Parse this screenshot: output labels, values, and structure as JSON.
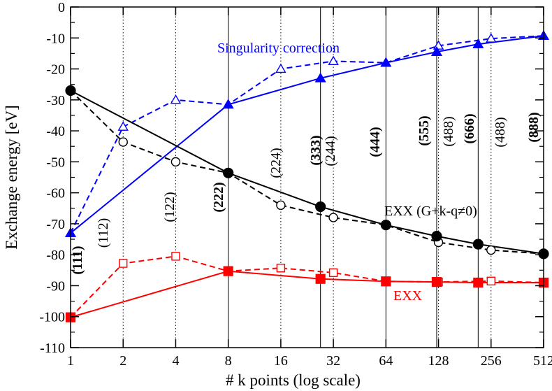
{
  "chart_data": {
    "type": "line",
    "xlabel": "# k points (log scale)",
    "ylabel": "Exchange energy [eV]",
    "x_ticks": [
      1,
      2,
      4,
      8,
      16,
      32,
      64,
      128,
      256,
      512
    ],
    "x_tick_labels": [
      "1",
      "2",
      "4",
      "8",
      "16",
      "32",
      "64",
      "128",
      "256",
      "512"
    ],
    "xlim": [
      1,
      512
    ],
    "ylim": [
      -110,
      0
    ],
    "y_ticks": [
      0,
      -10,
      -20,
      -30,
      -40,
      -50,
      -60,
      -70,
      -80,
      -90,
      -100,
      -110
    ],
    "y_tick_labels": [
      "0",
      "-10",
      "-20",
      "-30",
      "-40",
      "-50",
      "-60",
      "-70",
      "-80",
      "-90",
      "-100",
      "-110"
    ],
    "series": [
      {
        "name": "Singularity correction (solid)",
        "color": "#0000ff",
        "dash": false,
        "marker": "triangle-filled",
        "x": [
          1,
          8,
          27,
          64,
          125,
          216,
          512
        ],
        "y": [
          -73,
          -31.5,
          -23,
          -18,
          -14.5,
          -12,
          -9.3
        ]
      },
      {
        "name": "Singularity correction (dashed)",
        "color": "#0000ff",
        "dash": true,
        "marker": "triangle-open",
        "x": [
          1,
          2,
          4,
          8,
          16,
          32,
          64,
          128,
          256,
          512
        ],
        "y": [
          -73,
          -38.7,
          -30,
          -31.5,
          -20,
          -17.5,
          -18,
          -12.5,
          -10.2,
          -9.3
        ]
      },
      {
        "name": "EXX (G+k-q≠0) (solid)",
        "color": "#000000",
        "dash": false,
        "marker": "circle-filled",
        "x": [
          1,
          8,
          27,
          64,
          125,
          216,
          512
        ],
        "y": [
          -27,
          -53.6,
          -64.5,
          -70.4,
          -74,
          -76.6,
          -79.7
        ]
      },
      {
        "name": "EXX (G+k-q≠0) (dashed)",
        "color": "#000000",
        "dash": true,
        "marker": "circle-open",
        "x": [
          1,
          2,
          4,
          8,
          16,
          32,
          64,
          128,
          256,
          512
        ],
        "y": [
          -27,
          -43.6,
          -50,
          -53.6,
          -64,
          -68,
          -70.4,
          -76,
          -78.5,
          -79.7
        ]
      },
      {
        "name": "EXX (solid)",
        "color": "#ff0000",
        "dash": false,
        "marker": "square-filled",
        "x": [
          1,
          8,
          27,
          64,
          125,
          216,
          512
        ],
        "y": [
          -100.2,
          -85.3,
          -87.8,
          -88.6,
          -88.8,
          -89,
          -89
        ]
      },
      {
        "name": "EXX (dashed)",
        "color": "#ff0000",
        "dash": true,
        "marker": "square-open",
        "x": [
          1,
          2,
          4,
          8,
          16,
          32,
          64,
          128,
          256,
          512
        ],
        "y": [
          -100.2,
          -82.8,
          -80.5,
          -85.3,
          -84.3,
          -85.8,
          -88.6,
          -88.8,
          -88.5,
          -89
        ]
      }
    ],
    "grid_lines": [
      {
        "x": 2,
        "style": "dotted"
      },
      {
        "x": 4,
        "style": "dotted"
      },
      {
        "x": 8,
        "style": "solid"
      },
      {
        "x": 16,
        "style": "dotted"
      },
      {
        "x": 27,
        "style": "solid"
      },
      {
        "x": 32,
        "style": "dotted"
      },
      {
        "x": 64,
        "style": "solid"
      },
      {
        "x": 125,
        "style": "solid"
      },
      {
        "x": 128,
        "style": "dotted"
      },
      {
        "x": 216,
        "style": "solid"
      },
      {
        "x": 256,
        "style": "dotted"
      },
      {
        "x": 512,
        "style": "solid"
      }
    ],
    "annotations": [
      {
        "text": "Singularity correction",
        "color": "#0000ff"
      },
      {
        "text": "EXX (G+k-q≠0)",
        "color": "#000000"
      },
      {
        "text": "EXX",
        "color": "#ff0000"
      }
    ],
    "grid_labels": [
      {
        "text": "(111)",
        "bold": true
      },
      {
        "text": "(112)",
        "bold": false
      },
      {
        "text": "(122)",
        "bold": false
      },
      {
        "text": "(222)",
        "bold": true
      },
      {
        "text": "(224)",
        "bold": false
      },
      {
        "text": "(333)",
        "bold": true
      },
      {
        "text": "(244)",
        "bold": false
      },
      {
        "text": "(444)",
        "bold": true
      },
      {
        "text": "(555)",
        "bold": true
      },
      {
        "text": "(488)",
        "bold": false
      },
      {
        "text": "(666)",
        "bold": true
      },
      {
        "text": "(488)",
        "bold": false
      },
      {
        "text": "(888)",
        "bold": true
      }
    ]
  }
}
